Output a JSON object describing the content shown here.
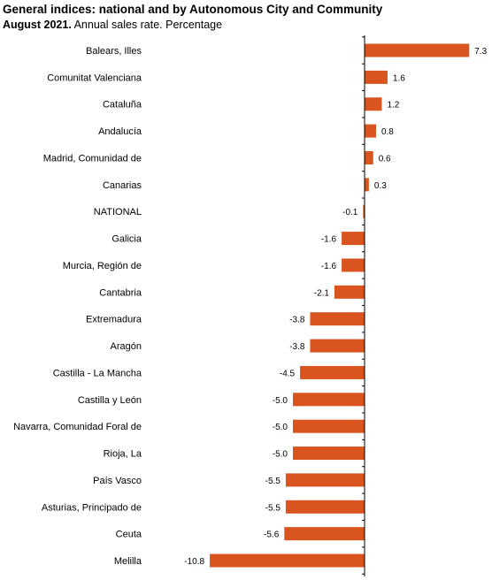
{
  "title": "General indices: national and by Autonomous City and Community",
  "subtitle_bold": "August 2021.",
  "subtitle_rest": " Annual sales rate. Percentage",
  "colors": {
    "bar": "#d9541e",
    "axis": "#000000"
  },
  "chart_data": {
    "type": "bar",
    "orientation": "horizontal",
    "categories": [
      "Balears, Illes",
      "Comunitat Valenciana",
      "Cataluña",
      "Andalucía",
      "Madrid, Comunidad de",
      "Canarias",
      "NATIONAL",
      "Galicia",
      "Murcia, Región de",
      "Cantabria",
      "Extremadura",
      "Aragón",
      "Castilla - La Mancha",
      "Castilla y León",
      "Navarra, Comunidad Foral de",
      "Rioja, La",
      "País Vasco",
      "Asturias, Principado de",
      "Ceuta",
      "Melilla"
    ],
    "values": [
      7.3,
      1.6,
      1.2,
      0.8,
      0.6,
      0.3,
      -0.1,
      -1.6,
      -1.6,
      -2.1,
      -3.8,
      -3.8,
      -4.5,
      -5.0,
      -5.0,
      -5.0,
      -5.5,
      -5.5,
      -5.6,
      -10.8
    ],
    "value_labels": [
      "7.3",
      "1.6",
      "1.2",
      "0.8",
      "0.6",
      "0.3",
      "-0.1",
      "-1.6",
      "-1.6",
      "-2.1",
      "-3.8",
      "-3.8",
      "-4.5",
      "-5.0",
      "-5.0",
      "-5.0",
      "-5.5",
      "-5.5",
      "-5.6",
      "-10.8"
    ],
    "xlim": [
      -10.8,
      7.3
    ],
    "grid": false,
    "legend": "none"
  }
}
